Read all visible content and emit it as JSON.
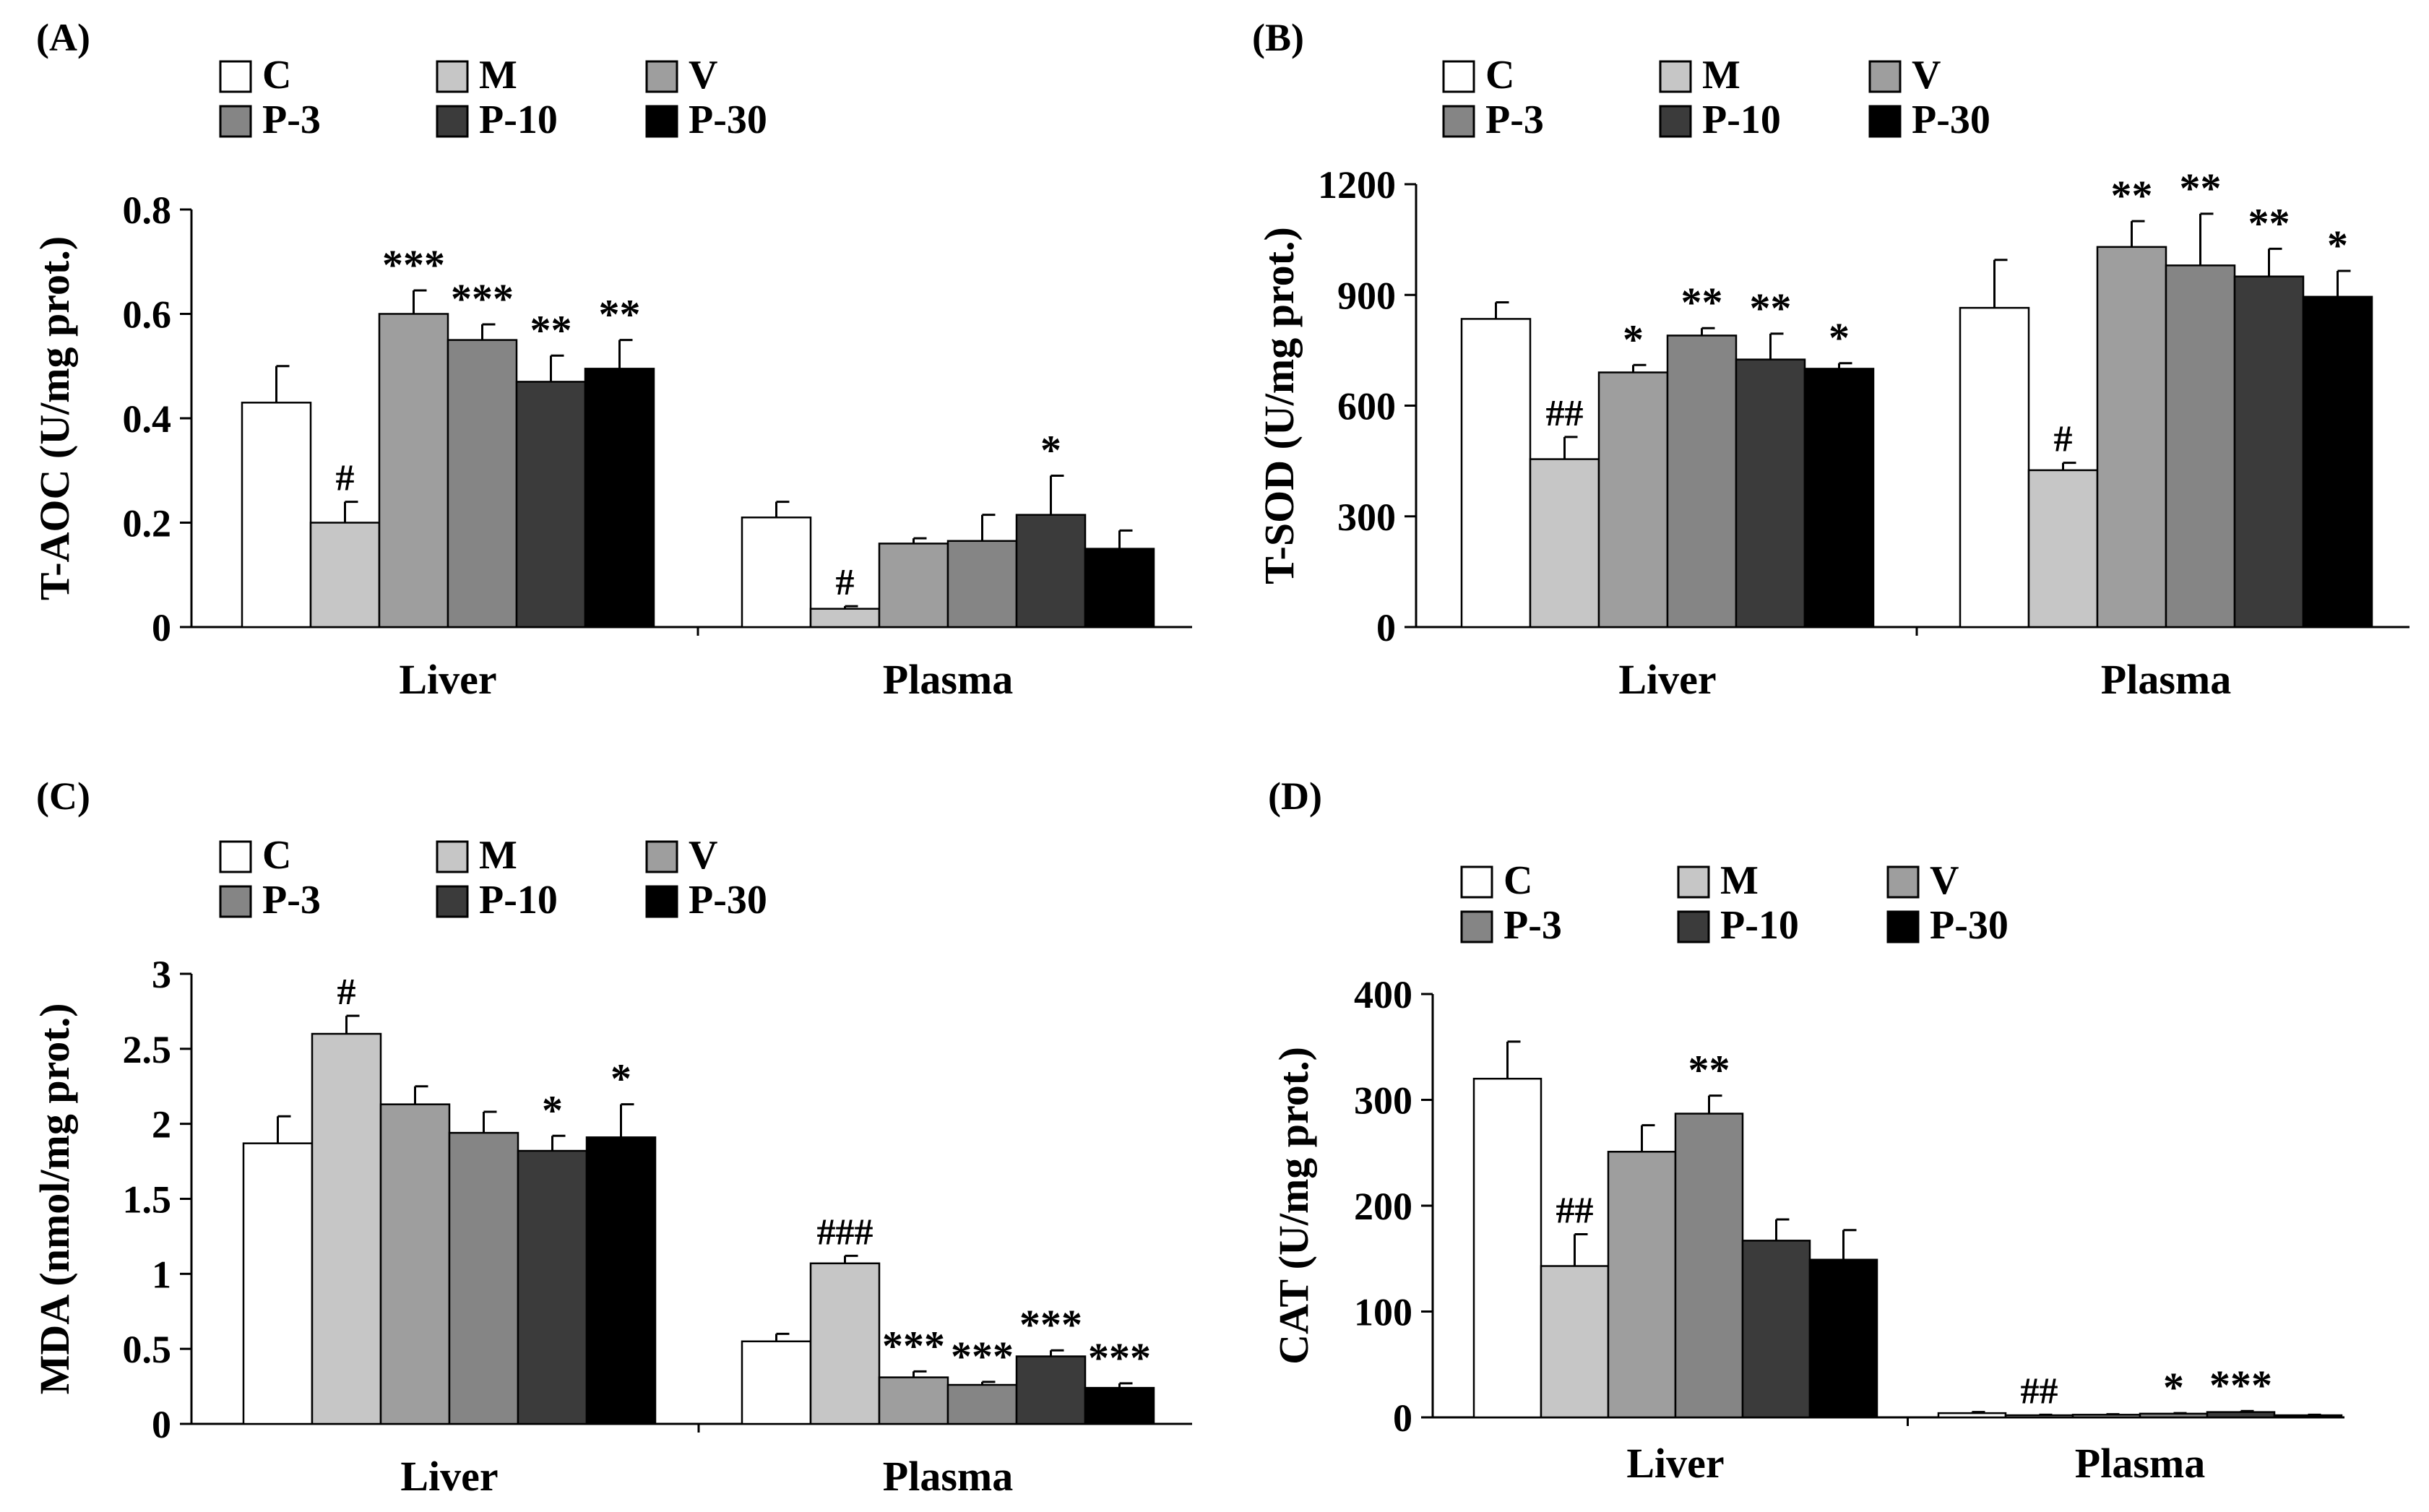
{
  "figure": {
    "group_names": [
      "C",
      "M",
      "V",
      "P-3",
      "P-10",
      "P-30"
    ],
    "group_colors": [
      "#ffffff",
      "#c6c6c6",
      "#9e9e9e",
      "#858585",
      "#3b3b3b",
      "#000000"
    ],
    "legend_rows": [
      [
        "C",
        "M",
        "V"
      ],
      [
        "P-3",
        "P-10",
        "P-30"
      ]
    ]
  },
  "chart_data": [
    {
      "panel_label": "(A)",
      "type": "bar",
      "categories": [
        "Liver",
        "Plasma"
      ],
      "series": [
        {
          "name": "C",
          "values": [
            0.43,
            0.21
          ],
          "errors": [
            0.07,
            0.03
          ],
          "annotations": [
            "",
            ""
          ]
        },
        {
          "name": "M",
          "values": [
            0.2,
            0.035
          ],
          "errors": [
            0.04,
            0.005
          ],
          "annotations": [
            "#",
            "#"
          ]
        },
        {
          "name": "V",
          "values": [
            0.6,
            0.16
          ],
          "errors": [
            0.045,
            0.01
          ],
          "annotations": [
            "***",
            ""
          ]
        },
        {
          "name": "P-3",
          "values": [
            0.55,
            0.165
          ],
          "errors": [
            0.03,
            0.05
          ],
          "annotations": [
            "***",
            ""
          ]
        },
        {
          "name": "P-10",
          "values": [
            0.47,
            0.215
          ],
          "errors": [
            0.05,
            0.075
          ],
          "annotations": [
            "**",
            "*"
          ]
        },
        {
          "name": "P-30",
          "values": [
            0.495,
            0.15
          ],
          "errors": [
            0.055,
            0.035
          ],
          "annotations": [
            "**",
            ""
          ]
        }
      ],
      "xlabel": "",
      "ylabel": "T-AOC (U/mg prot.)",
      "ylim": [
        0,
        0.8
      ],
      "yticks": [
        0,
        0.2,
        0.4,
        0.6,
        0.8
      ],
      "ytick_labels": [
        "0",
        "0.2",
        "0.4",
        "0.6",
        "0.8"
      ]
    },
    {
      "panel_label": "(B)",
      "type": "bar",
      "categories": [
        "Liver",
        "Plasma"
      ],
      "series": [
        {
          "name": "C",
          "values": [
            835,
            865
          ],
          "errors": [
            45,
            130
          ],
          "annotations": [
            "",
            ""
          ]
        },
        {
          "name": "M",
          "values": [
            455,
            425
          ],
          "errors": [
            60,
            20
          ],
          "annotations": [
            "##",
            "#"
          ]
        },
        {
          "name": "V",
          "values": [
            690,
            1030
          ],
          "errors": [
            20,
            70
          ],
          "annotations": [
            "*",
            "**"
          ]
        },
        {
          "name": "P-3",
          "values": [
            790,
            980
          ],
          "errors": [
            20,
            140
          ],
          "annotations": [
            "**",
            "**"
          ]
        },
        {
          "name": "P-10",
          "values": [
            725,
            950
          ],
          "errors": [
            70,
            75
          ],
          "annotations": [
            "**",
            "**"
          ]
        },
        {
          "name": "P-30",
          "values": [
            700,
            895
          ],
          "errors": [
            15,
            70
          ],
          "annotations": [
            "*",
            "*"
          ]
        }
      ],
      "xlabel": "",
      "ylabel": "T-SOD (U/mg prot.)",
      "ylim": [
        0,
        1200
      ],
      "yticks": [
        0,
        300,
        600,
        900,
        1200
      ],
      "ytick_labels": [
        "0",
        "300",
        "600",
        "900",
        "1200"
      ]
    },
    {
      "panel_label": "(C)",
      "type": "bar",
      "categories": [
        "Liver",
        "Plasma"
      ],
      "series": [
        {
          "name": "C",
          "values": [
            1.87,
            0.55
          ],
          "errors": [
            0.18,
            0.05
          ],
          "annotations": [
            "",
            ""
          ]
        },
        {
          "name": "M",
          "values": [
            2.6,
            1.07
          ],
          "errors": [
            0.12,
            0.05
          ],
          "annotations": [
            "#",
            "###"
          ]
        },
        {
          "name": "V",
          "values": [
            2.13,
            0.31
          ],
          "errors": [
            0.12,
            0.04
          ],
          "annotations": [
            "",
            "***"
          ]
        },
        {
          "name": "P-3",
          "values": [
            1.94,
            0.26
          ],
          "errors": [
            0.14,
            0.02
          ],
          "annotations": [
            "",
            "***"
          ]
        },
        {
          "name": "P-10",
          "values": [
            1.82,
            0.45
          ],
          "errors": [
            0.1,
            0.04
          ],
          "annotations": [
            "*",
            "***"
          ]
        },
        {
          "name": "P-30",
          "values": [
            1.91,
            0.24
          ],
          "errors": [
            0.22,
            0.03
          ],
          "annotations": [
            "*",
            "***"
          ]
        }
      ],
      "xlabel": "",
      "ylabel": "MDA (nmol/mg prot.)",
      "ylim": [
        0,
        3
      ],
      "yticks": [
        0,
        0.5,
        1,
        1.5,
        2,
        2.5,
        3
      ],
      "ytick_labels": [
        "0",
        "0.5",
        "1",
        "1.5",
        "2",
        "2.5",
        "3"
      ]
    },
    {
      "panel_label": "(D)",
      "type": "bar",
      "categories": [
        "Liver",
        "Plasma"
      ],
      "series": [
        {
          "name": "C",
          "values": [
            320,
            4
          ],
          "errors": [
            35,
            1
          ],
          "annotations": [
            "",
            ""
          ]
        },
        {
          "name": "M",
          "values": [
            143,
            2
          ],
          "errors": [
            30,
            0.5
          ],
          "annotations": [
            "##",
            "##"
          ]
        },
        {
          "name": "V",
          "values": [
            251,
            2.5
          ],
          "errors": [
            25,
            0.5
          ],
          "annotations": [
            "",
            ""
          ]
        },
        {
          "name": "P-3",
          "values": [
            287,
            3.5
          ],
          "errors": [
            17,
            0.5
          ],
          "annotations": [
            "**",
            "*"
          ]
        },
        {
          "name": "P-10",
          "values": [
            167,
            5
          ],
          "errors": [
            20,
            1
          ],
          "annotations": [
            "",
            "***"
          ]
        },
        {
          "name": "P-30",
          "values": [
            149,
            2
          ],
          "errors": [
            28,
            0.5
          ],
          "annotations": [
            "",
            ""
          ]
        }
      ],
      "xlabel": "",
      "ylabel": "CAT (U/mg prot.)",
      "ylim": [
        0,
        400
      ],
      "yticks": [
        0,
        100,
        200,
        300,
        400
      ],
      "ytick_labels": [
        "0",
        "100",
        "200",
        "300",
        "400"
      ]
    }
  ]
}
